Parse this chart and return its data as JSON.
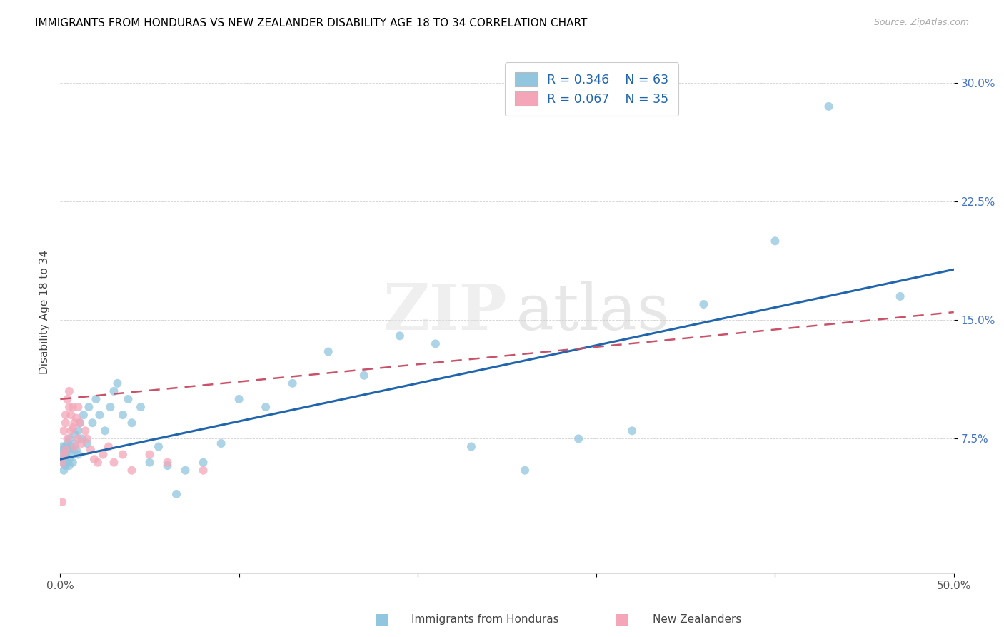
{
  "title": "IMMIGRANTS FROM HONDURAS VS NEW ZEALANDER DISABILITY AGE 18 TO 34 CORRELATION CHART",
  "source": "Source: ZipAtlas.com",
  "ylabel": "Disability Age 18 to 34",
  "xlim": [
    0.0,
    0.5
  ],
  "ylim": [
    -0.01,
    0.32
  ],
  "xticks": [
    0.0,
    0.1,
    0.2,
    0.3,
    0.4,
    0.5
  ],
  "xtick_labels": [
    "0.0%",
    "",
    "",
    "",
    "",
    "50.0%"
  ],
  "yticks": [
    0.075,
    0.15,
    0.225,
    0.3
  ],
  "ytick_labels": [
    "7.5%",
    "15.0%",
    "22.5%",
    "30.0%"
  ],
  "legend_r1": "R = 0.346",
  "legend_n1": "N = 63",
  "legend_r2": "R = 0.067",
  "legend_n2": "N = 35",
  "blue_color": "#92c5de",
  "pink_color": "#f4a6b8",
  "trend_blue": "#2166ac",
  "trend_pink": "#c9526a",
  "watermark_zip": "ZIP",
  "watermark_atlas": "atlas",
  "blue_trend_start": 0.062,
  "blue_trend_end": 0.182,
  "pink_trend_start": 0.1,
  "pink_trend_end": 0.155,
  "blue_x": [
    0.001,
    0.001,
    0.001,
    0.002,
    0.002,
    0.002,
    0.003,
    0.003,
    0.003,
    0.003,
    0.004,
    0.004,
    0.004,
    0.005,
    0.005,
    0.005,
    0.006,
    0.006,
    0.007,
    0.007,
    0.008,
    0.008,
    0.009,
    0.01,
    0.01,
    0.011,
    0.012,
    0.013,
    0.015,
    0.016,
    0.018,
    0.02,
    0.022,
    0.025,
    0.028,
    0.03,
    0.032,
    0.035,
    0.038,
    0.04,
    0.045,
    0.05,
    0.055,
    0.06,
    0.065,
    0.07,
    0.08,
    0.09,
    0.1,
    0.115,
    0.13,
    0.15,
    0.17,
    0.19,
    0.21,
    0.23,
    0.26,
    0.29,
    0.32,
    0.36,
    0.4,
    0.43,
    0.47
  ],
  "blue_y": [
    0.06,
    0.065,
    0.07,
    0.055,
    0.062,
    0.068,
    0.058,
    0.063,
    0.065,
    0.07,
    0.06,
    0.068,
    0.072,
    0.058,
    0.062,
    0.075,
    0.065,
    0.07,
    0.068,
    0.06,
    0.072,
    0.078,
    0.068,
    0.065,
    0.08,
    0.085,
    0.075,
    0.09,
    0.072,
    0.095,
    0.085,
    0.1,
    0.09,
    0.08,
    0.095,
    0.105,
    0.11,
    0.09,
    0.1,
    0.085,
    0.095,
    0.06,
    0.07,
    0.058,
    0.04,
    0.055,
    0.06,
    0.072,
    0.1,
    0.095,
    0.11,
    0.13,
    0.115,
    0.14,
    0.135,
    0.07,
    0.055,
    0.075,
    0.08,
    0.16,
    0.2,
    0.285,
    0.165
  ],
  "pink_x": [
    0.001,
    0.001,
    0.002,
    0.002,
    0.003,
    0.003,
    0.003,
    0.004,
    0.004,
    0.005,
    0.005,
    0.006,
    0.006,
    0.007,
    0.007,
    0.008,
    0.008,
    0.009,
    0.01,
    0.01,
    0.011,
    0.012,
    0.014,
    0.015,
    0.017,
    0.019,
    0.021,
    0.024,
    0.027,
    0.03,
    0.035,
    0.04,
    0.05,
    0.06,
    0.08
  ],
  "pink_y": [
    0.035,
    0.06,
    0.065,
    0.08,
    0.068,
    0.085,
    0.09,
    0.075,
    0.1,
    0.095,
    0.105,
    0.08,
    0.09,
    0.082,
    0.095,
    0.085,
    0.07,
    0.088,
    0.075,
    0.095,
    0.085,
    0.072,
    0.08,
    0.075,
    0.068,
    0.062,
    0.06,
    0.065,
    0.07,
    0.06,
    0.065,
    0.055,
    0.065,
    0.06,
    0.055
  ]
}
